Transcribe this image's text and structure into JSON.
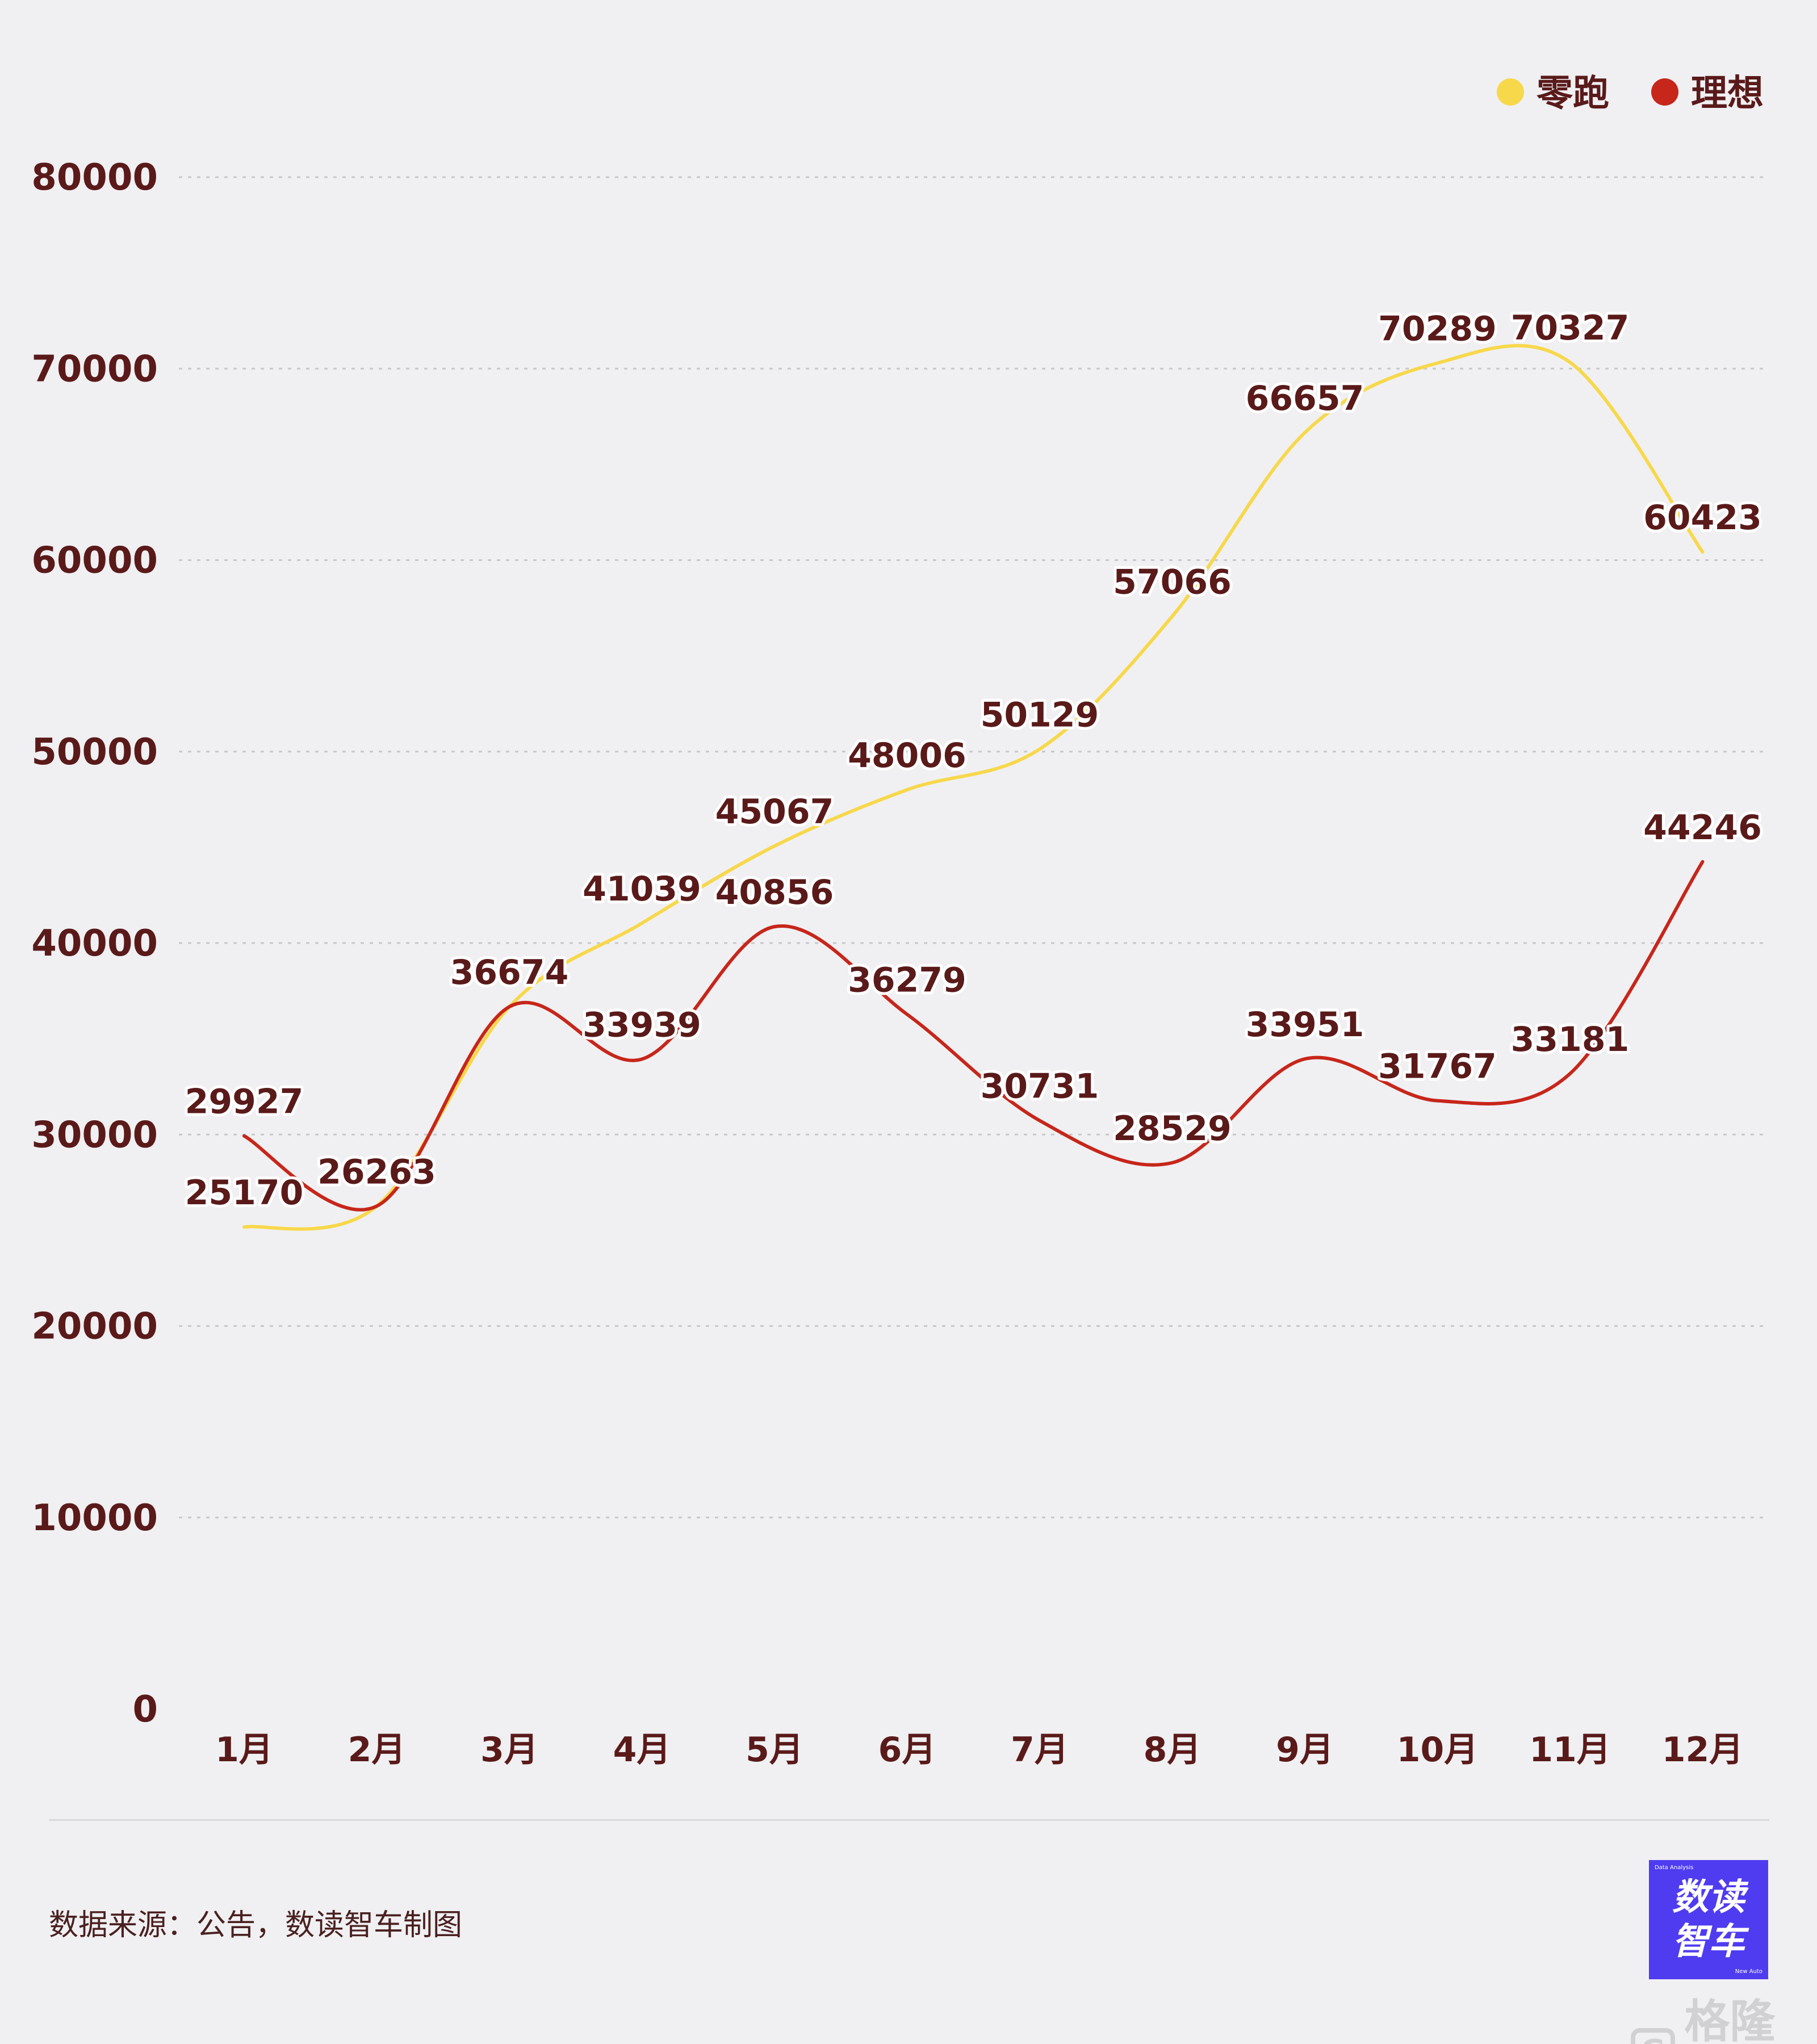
{
  "chart_data": {
    "type": "line",
    "categories": [
      "1月",
      "2月",
      "3月",
      "4月",
      "5月",
      "6月",
      "7月",
      "8月",
      "9月",
      "10月",
      "11月",
      "12月"
    ],
    "series": [
      {
        "name": "零跑",
        "color": "#f7d84b",
        "values": [
          25170,
          26263,
          36674,
          41039,
          45067,
          48006,
          50129,
          57066,
          66657,
          70289,
          70327,
          60423
        ]
      },
      {
        "name": "理想",
        "color": "#c7261a",
        "values": [
          29927,
          26263,
          36674,
          33939,
          40856,
          36279,
          30731,
          28529,
          33951,
          31767,
          33181,
          44246
        ]
      }
    ],
    "ylim": [
      0,
      80000
    ],
    "yticks": [
      0,
      10000,
      20000,
      30000,
      40000,
      50000,
      60000,
      70000,
      80000
    ],
    "grid": true,
    "legend": "top-right",
    "smooth": true
  },
  "colors": {
    "text": "#5a1a1a",
    "background": "#f0f0f2",
    "grid": "#c8c8cc",
    "label_halo": "#ffffff"
  },
  "footer": {
    "source": "数据来源：公告，数读智车制图"
  },
  "logo": {
    "line1": "数读",
    "line2": "智车",
    "small_top": "Data Analysis",
    "small_bottom": "New Auto"
  },
  "watermark": {
    "icon_letter": "G",
    "text": "格隆汇"
  }
}
